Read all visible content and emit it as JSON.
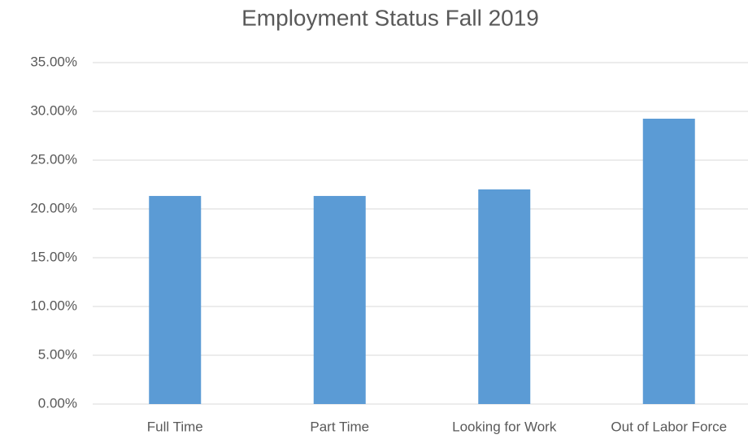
{
  "chart_data": {
    "type": "bar",
    "title": "Employment Status Fall 2019",
    "categories": [
      "Full Time",
      "Part Time",
      "Looking for Work",
      "Out of Labor Force"
    ],
    "values": [
      21.33,
      21.33,
      22.0,
      29.25
    ],
    "color": "#5b9bd5",
    "ylim": [
      0,
      35
    ],
    "yticks": [
      {
        "value": 0,
        "label": "0.00%"
      },
      {
        "value": 5,
        "label": "5.00%"
      },
      {
        "value": 10,
        "label": "10.00%"
      },
      {
        "value": 15,
        "label": "15.00%"
      },
      {
        "value": 20,
        "label": "20.00%"
      },
      {
        "value": 25,
        "label": "25.00%"
      },
      {
        "value": 30,
        "label": "30.00%"
      },
      {
        "value": 35,
        "label": "35.00%"
      }
    ],
    "grid": true
  }
}
